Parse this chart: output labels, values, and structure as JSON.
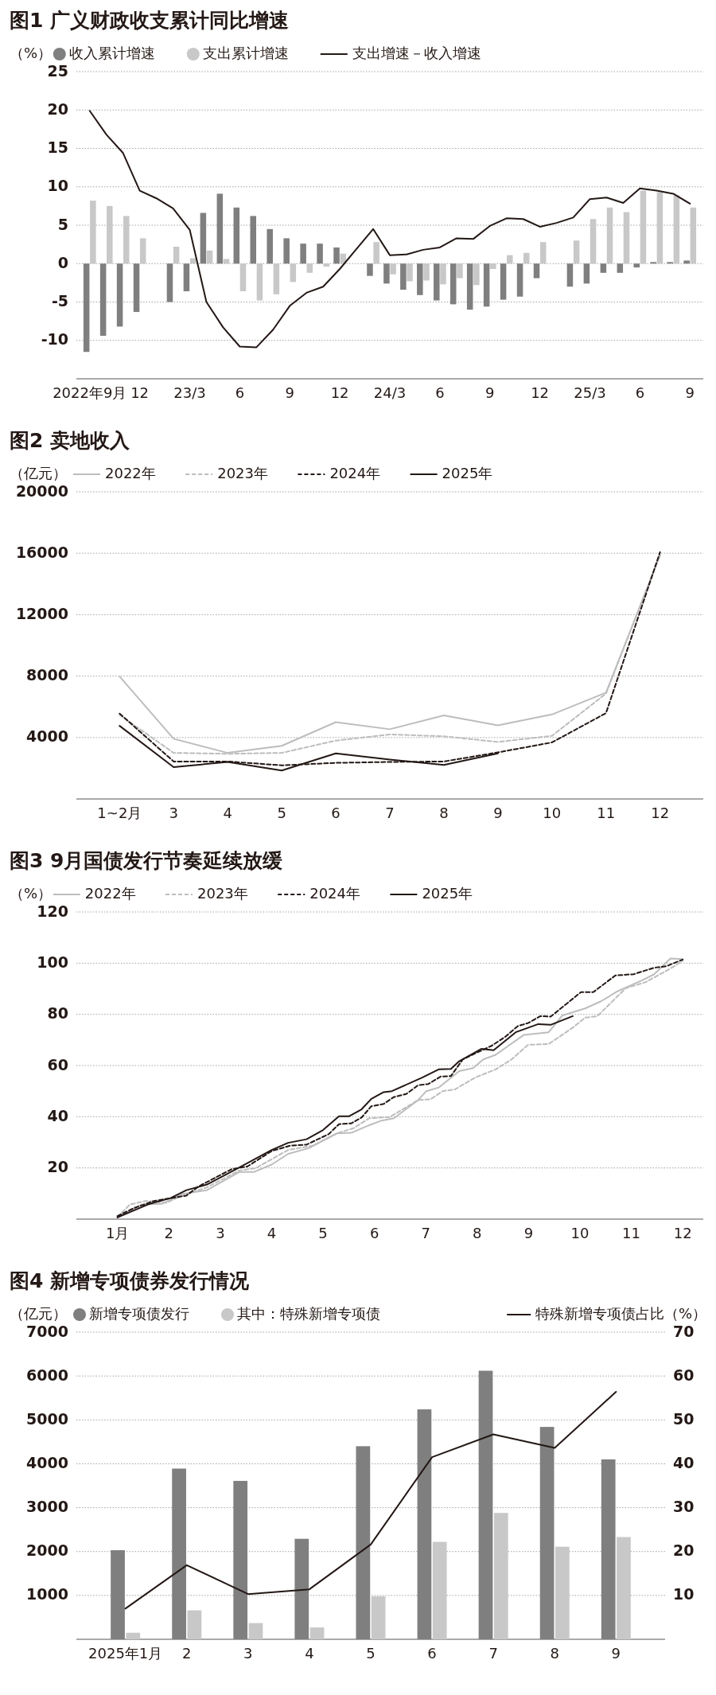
{
  "chart_data": [
    {
      "type": "bar",
      "title": "图1 广义财政收支累计同比增速",
      "ylabel": "（%）",
      "legend": "top",
      "grid": "y",
      "ylim": [
        -15,
        25
      ],
      "yticks": [
        -10,
        -5,
        0,
        5,
        10,
        15,
        20,
        25
      ],
      "categories": [
        "2022年9月",
        null,
        null,
        "12",
        null,
        null,
        "23/3",
        null,
        null,
        "6",
        null,
        null,
        "9",
        null,
        null,
        "12",
        null,
        null,
        "24/3",
        null,
        null,
        "6",
        null,
        null,
        "9",
        null,
        null,
        "12",
        null,
        null,
        "25/3",
        null,
        null,
        "6",
        null,
        null,
        "9"
      ],
      "series": [
        {
          "name": "收入累计增速",
          "type": "bar",
          "color": "#7f7f7f",
          "values": [
            -11.5,
            -9.4,
            -8.2,
            -6.3,
            null,
            -5,
            -3.6,
            6.6,
            9.1,
            7.3,
            6.2,
            4.5,
            3.3,
            2.6,
            2.6,
            2.1,
            null,
            -1.6,
            -2.6,
            -3.4,
            -4.1,
            -4.8,
            -5.3,
            -6,
            -5.6,
            -4.7,
            -4.3,
            -1.9,
            null,
            -3,
            -2.6,
            -1.2,
            -1.2,
            -0.5,
            0.2,
            0.2,
            0.4
          ]
        },
        {
          "name": "支出累计增速",
          "type": "bar",
          "color": "#c8c8c8",
          "values": [
            8.2,
            7.5,
            6.2,
            3.3,
            null,
            2.2,
            0.7,
            1.7,
            0.6,
            -3.6,
            -4.8,
            -4,
            -2.4,
            -1.2,
            -0.4,
            1.3,
            null,
            2.8,
            -1.4,
            -2.3,
            -2.2,
            -2.7,
            -1.9,
            -2.8,
            -0.7,
            1.1,
            1.4,
            2.8,
            null,
            3,
            5.8,
            7.3,
            6.7,
            9.5,
            9.3,
            8.9,
            7.3
          ]
        },
        {
          "name": "支出增速－收入增速",
          "type": "line",
          "color": "#231815",
          "line_style": "solid",
          "values": [
            19.9,
            16.8,
            14.4,
            9.5,
            8.5,
            7.2,
            4.4,
            -5,
            -8.3,
            -10.8,
            -10.9,
            -8.6,
            -5.5,
            -3.8,
            -3,
            -0.7,
            1.9,
            4.5,
            1.1,
            1.2,
            1.8,
            2.1,
            3.3,
            3.2,
            4.9,
            5.9,
            5.8,
            4.8,
            5.3,
            6,
            8.4,
            8.6,
            7.9,
            9.8,
            9.5,
            9.1,
            7.8
          ]
        }
      ]
    },
    {
      "type": "line",
      "title": "图2 卖地收入",
      "ylabel": "（亿元）",
      "legend": "top",
      "grid": "y",
      "ylim": [
        0,
        20000
      ],
      "yticks": [
        4000,
        8000,
        12000,
        16000,
        20000
      ],
      "categories": [
        "1~2月",
        "3",
        "4",
        "5",
        "6",
        "7",
        "8",
        "9",
        "10",
        "11",
        "12"
      ],
      "series": [
        {
          "name": "2022年",
          "color": "#bdbdbd",
          "line_style": "solid",
          "values": [
            7970,
            3920,
            3000,
            3460,
            5000,
            4540,
            5440,
            4790,
            5500,
            6920,
            15850
          ]
        },
        {
          "name": "2023年",
          "color": "#bdbdbd",
          "line_style": "dashed",
          "values": [
            5470,
            3000,
            2940,
            3000,
            3800,
            4200,
            4080,
            3710,
            4110,
            6860,
            15900
          ]
        },
        {
          "name": "2024年",
          "color": "#231815",
          "line_style": "dashed",
          "values": [
            5560,
            2440,
            2440,
            2190,
            2350,
            2410,
            2440,
            3030,
            3680,
            5590,
            16070
          ]
        },
        {
          "name": "2025年",
          "color": "#231815",
          "line_style": "solid",
          "values": [
            4760,
            2070,
            2410,
            1850,
            2970,
            2560,
            2220,
            2970,
            null,
            null,
            null
          ]
        }
      ]
    },
    {
      "type": "line",
      "title": "图3 9月国债发行节奏延续放缓",
      "ylabel": "（%）",
      "legend": "top",
      "grid": "y",
      "ylim": [
        0,
        120
      ],
      "yticks": [
        20,
        40,
        60,
        80,
        100,
        120
      ],
      "xlim": [
        0.2,
        12.4
      ],
      "xticks": [
        {
          "value": 1,
          "label": "1月"
        },
        2,
        3,
        4,
        5,
        6,
        7,
        8,
        9,
        10,
        11,
        12
      ],
      "series": [
        {
          "name": "2022年",
          "color": "#bdbdbd",
          "line_style": "solid",
          "x": [
            1,
            1.47,
            1.87,
            2.27,
            2.74,
            3.37,
            3.65,
            4,
            4.32,
            4.72,
            5.27,
            5.55,
            5.9,
            6.14,
            6.38,
            6.85,
            7.01,
            7.25,
            7.65,
            7.92,
            8.12,
            8.36,
            8.91,
            9.39,
            9.66,
            10.1,
            10.41,
            10.73,
            11.21,
            11.44,
            11.76,
            12
          ],
          "values": [
            0.7,
            5.7,
            6,
            9.9,
            11.3,
            18.4,
            18.4,
            21.3,
            25.5,
            27.7,
            33.5,
            33.7,
            36.7,
            38.5,
            39.4,
            46.5,
            50,
            51.4,
            57.8,
            59,
            62.4,
            64.2,
            72,
            73,
            79.6,
            82.3,
            85.1,
            89,
            93.3,
            95.6,
            101.8,
            101.6
          ]
        },
        {
          "name": "2023年",
          "color": "#bdbdbd",
          "line_style": "dashed",
          "x": [
            1,
            1.24,
            1.55,
            1.95,
            2.27,
            2.74,
            3.37,
            3.69,
            4,
            4.32,
            4.8,
            5.27,
            5.59,
            5.9,
            6.3,
            6.85,
            7.09,
            7.33,
            7.57,
            7.96,
            8.36,
            8.67,
            8.99,
            9.39,
            9.86,
            10.1,
            10.34,
            10.89,
            11.28,
            11.76,
            12
          ],
          "values": [
            0.7,
            5.7,
            7.1,
            6.4,
            9.2,
            12.4,
            19,
            19.9,
            23.4,
            27,
            28.7,
            33.5,
            35.5,
            39.4,
            39.9,
            46.5,
            46.8,
            50,
            50.7,
            55.3,
            58.5,
            62.4,
            68.1,
            68.4,
            74.8,
            78.7,
            79.3,
            90.2,
            92.6,
            97.9,
            100.9
          ]
        },
        {
          "name": "2024年",
          "color": "#231815",
          "line_style": "dashed",
          "x": [
            1,
            1.32,
            1.71,
            2.34,
            2.58,
            3.22,
            3.53,
            4,
            4.36,
            4.68,
            5.11,
            5.31,
            5.55,
            5.75,
            5.94,
            6.18,
            6.38,
            6.62,
            6.85,
            7.05,
            7.29,
            7.49,
            7.72,
            8,
            8.28,
            8.55,
            8.79,
            8.99,
            9.23,
            9.43,
            10.02,
            10.26,
            10.69,
            11.05,
            11.44,
            11.68,
            12
          ],
          "values": [
            1.2,
            4.3,
            7.1,
            9.2,
            12.8,
            19.5,
            20.6,
            26.6,
            28.7,
            29.1,
            33.2,
            37.1,
            37.4,
            39.7,
            44.1,
            45,
            47.7,
            48.9,
            52.3,
            52.8,
            55.7,
            55.9,
            62.4,
            65.1,
            67.7,
            71.3,
            75.4,
            76.6,
            79.3,
            79.1,
            88.7,
            88.7,
            95.2,
            95.7,
            98.2,
            98.8,
            101.4
          ]
        },
        {
          "name": "2025年",
          "color": "#231815",
          "line_style": "solid",
          "x": [
            1,
            1.63,
            2.03,
            2.34,
            2.74,
            3.37,
            4,
            4.32,
            4.68,
            5,
            5.31,
            5.51,
            5.75,
            5.94,
            6.18,
            6.34,
            6.93,
            7.25,
            7.49,
            7.65,
            8.08,
            8.32,
            8.75,
            9.19,
            9.43,
            9.86
          ],
          "values": [
            0.7,
            6,
            8.2,
            11.3,
            13.5,
            20.2,
            27,
            29.8,
            31.2,
            34.8,
            40.2,
            40.2,
            42.9,
            47,
            49.6,
            50,
            55.3,
            58.5,
            58.7,
            61.7,
            66.5,
            66,
            73,
            76.2,
            75.9,
            79.3
          ]
        }
      ]
    },
    {
      "type": "bar",
      "title": "图4 新增专项债券发行情况",
      "ylabel": "（亿元）",
      "y2label": "（%）",
      "legend": "top",
      "grid": "y",
      "ylim": [
        0,
        7000
      ],
      "yticks": [
        1000,
        2000,
        3000,
        4000,
        5000,
        6000,
        7000
      ],
      "y2lim": [
        0,
        70
      ],
      "y2ticks": [
        10,
        20,
        30,
        40,
        50,
        60,
        70
      ],
      "categories": [
        "2025年1月",
        "2",
        "3",
        "4",
        "5",
        "6",
        "7",
        "8",
        "9"
      ],
      "series": [
        {
          "name": "新增专项债发行",
          "type": "bar",
          "color": "#7f7f7f",
          "values": [
            2030,
            3890,
            3610,
            2290,
            4400,
            5240,
            6120,
            4840,
            4100
          ]
        },
        {
          "name": "其中：特殊新增专项债",
          "type": "bar",
          "color": "#c8c8c8",
          "values": [
            150,
            660,
            370,
            270,
            980,
            2220,
            2880,
            2110,
            2330
          ]
        },
        {
          "name": "特殊新增专项债占比",
          "type": "line",
          "axis": "y2",
          "color": "#231815",
          "line_style": "solid",
          "values": [
            7,
            16.9,
            10.3,
            11.4,
            21.6,
            41.5,
            46.7,
            43.6,
            56.4
          ]
        }
      ]
    }
  ]
}
